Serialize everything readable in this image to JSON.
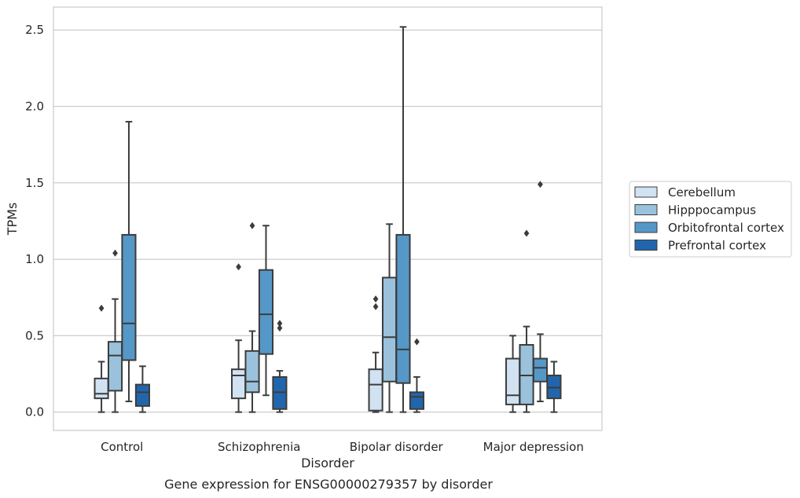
{
  "chart_data": {
    "type": "box",
    "xlabel": "Disorder",
    "ylabel": "TPMs",
    "caption": "Gene expression for ENSG00000279357 by disorder",
    "ylim": [
      -0.12,
      2.65
    ],
    "yticks": [
      0.0,
      0.5,
      1.0,
      1.5,
      2.0,
      2.5
    ],
    "ytick_labels": [
      "0.0",
      "0.5",
      "1.0",
      "1.5",
      "2.0",
      "2.5"
    ],
    "grid": "horizontal",
    "legend_position": "right",
    "categories": [
      "Control",
      "Schizophrenia",
      "Bipolar disorder",
      "Major depression"
    ],
    "series": [
      {
        "name": "Cerebellum",
        "color": "#d1e2f2",
        "boxes": [
          {
            "whislo": 0.0,
            "q1": 0.09,
            "med": 0.12,
            "q3": 0.22,
            "whishi": 0.33,
            "fliers": [
              0.68
            ]
          },
          {
            "whislo": 0.0,
            "q1": 0.09,
            "med": 0.24,
            "q3": 0.28,
            "whishi": 0.47,
            "fliers": [
              0.95
            ]
          },
          {
            "whislo": 0.0,
            "q1": 0.01,
            "med": 0.18,
            "q3": 0.28,
            "whishi": 0.39,
            "fliers": [
              0.69,
              0.74
            ]
          },
          {
            "whislo": 0.0,
            "q1": 0.05,
            "med": 0.11,
            "q3": 0.35,
            "whishi": 0.5,
            "fliers": []
          }
        ]
      },
      {
        "name": "Hipppocampus",
        "color": "#9ac2dc",
        "boxes": [
          {
            "whislo": 0.0,
            "q1": 0.14,
            "med": 0.37,
            "q3": 0.46,
            "whishi": 0.74,
            "fliers": [
              1.04
            ]
          },
          {
            "whislo": 0.0,
            "q1": 0.13,
            "med": 0.2,
            "q3": 0.4,
            "whishi": 0.53,
            "fliers": [
              1.22
            ]
          },
          {
            "whislo": 0.0,
            "q1": 0.2,
            "med": 0.49,
            "q3": 0.88,
            "whishi": 1.23,
            "fliers": []
          },
          {
            "whislo": 0.0,
            "q1": 0.05,
            "med": 0.24,
            "q3": 0.44,
            "whishi": 0.56,
            "fliers": [
              1.17
            ]
          }
        ]
      },
      {
        "name": "Orbitofrontal cortex",
        "color": "#5598c7",
        "boxes": [
          {
            "whislo": 0.07,
            "q1": 0.34,
            "med": 0.58,
            "q3": 1.16,
            "whishi": 1.9,
            "fliers": []
          },
          {
            "whislo": 0.11,
            "q1": 0.38,
            "med": 0.64,
            "q3": 0.93,
            "whishi": 1.22,
            "fliers": []
          },
          {
            "whislo": 0.0,
            "q1": 0.19,
            "med": 0.41,
            "q3": 1.16,
            "whishi": 2.52,
            "fliers": []
          },
          {
            "whislo": 0.07,
            "q1": 0.2,
            "med": 0.29,
            "q3": 0.35,
            "whishi": 0.51,
            "fliers": [
              1.49
            ]
          }
        ]
      },
      {
        "name": "Prefrontal cortex",
        "color": "#2166ac",
        "boxes": [
          {
            "whislo": 0.0,
            "q1": 0.04,
            "med": 0.13,
            "q3": 0.18,
            "whishi": 0.3,
            "fliers": []
          },
          {
            "whislo": 0.0,
            "q1": 0.02,
            "med": 0.13,
            "q3": 0.23,
            "whishi": 0.27,
            "fliers": [
              0.55,
              0.58
            ]
          },
          {
            "whislo": 0.0,
            "q1": 0.02,
            "med": 0.1,
            "q3": 0.13,
            "whishi": 0.23,
            "fliers": [
              0.46
            ]
          },
          {
            "whislo": 0.0,
            "q1": 0.09,
            "med": 0.16,
            "q3": 0.24,
            "whishi": 0.33,
            "fliers": []
          }
        ]
      }
    ]
  }
}
